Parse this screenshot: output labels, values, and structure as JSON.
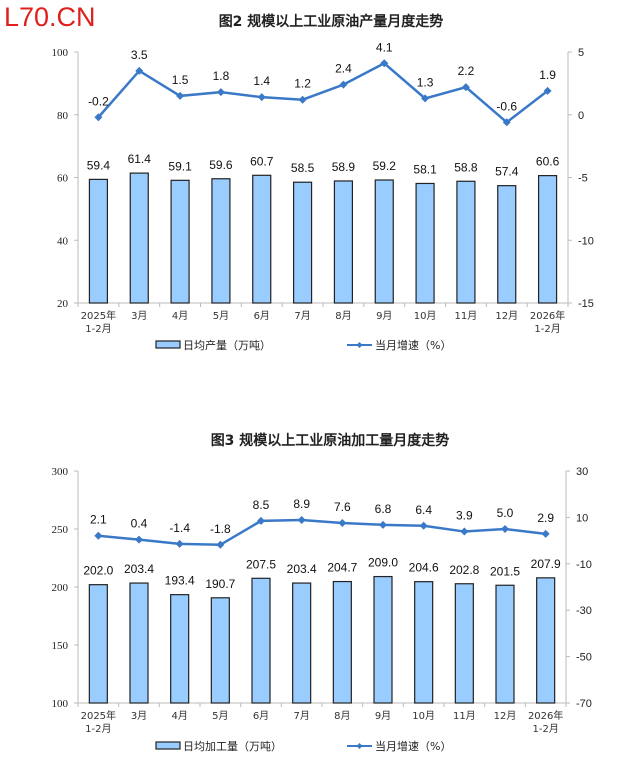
{
  "watermark": "L70.CN",
  "colors": {
    "bar": "#99ccff",
    "bar_border": "#222222",
    "line": "#3a78c8",
    "axis": "#bbbbbb"
  },
  "chart_data": [
    {
      "type": "bar+line",
      "title": "图2  规模以上工业原油产量月度走势",
      "categories": [
        "2025年\n1-2月",
        "3月",
        "4月",
        "5月",
        "6月",
        "7月",
        "8月",
        "9月",
        "10月",
        "11月",
        "12月",
        "2026年\n1-2月"
      ],
      "series": [
        {
          "name": "日均产量（万吨）",
          "type": "bar",
          "axis": "left",
          "values": [
            59.4,
            61.4,
            59.1,
            59.6,
            60.7,
            58.5,
            58.9,
            59.2,
            58.1,
            58.8,
            57.4,
            60.6
          ]
        },
        {
          "name": "当月增速（%）",
          "type": "line",
          "axis": "right",
          "values": [
            -0.2,
            3.5,
            1.5,
            1.8,
            1.4,
            1.2,
            2.4,
            4.1,
            1.3,
            2.2,
            -0.6,
            1.9
          ]
        }
      ],
      "left_ylim": [
        20,
        100
      ],
      "left_ticks": [
        20,
        40,
        60,
        80,
        100
      ],
      "right_ylim": [
        -15,
        5
      ],
      "right_ticks": [
        -15,
        -10,
        -5,
        0,
        5
      ],
      "legend": "bottom"
    },
    {
      "type": "bar+line",
      "title": "图3  规模以上工业原油加工量月度走势",
      "categories": [
        "2025年\n1-2月",
        "3月",
        "4月",
        "5月",
        "6月",
        "7月",
        "8月",
        "9月",
        "10月",
        "11月",
        "12月",
        "2026年\n1-2月"
      ],
      "series": [
        {
          "name": "日均加工量（万吨）",
          "type": "bar",
          "axis": "left",
          "values": [
            202.0,
            203.4,
            193.4,
            190.7,
            207.5,
            203.4,
            204.7,
            209.0,
            204.6,
            202.8,
            201.5,
            207.9
          ]
        },
        {
          "name": "当月增速（%）",
          "type": "line",
          "axis": "right",
          "values": [
            2.1,
            0.4,
            -1.4,
            -1.8,
            8.5,
            8.9,
            7.6,
            6.8,
            6.4,
            3.9,
            5.0,
            2.9
          ]
        }
      ],
      "left_ylim": [
        100,
        300
      ],
      "left_ticks": [
        100,
        150,
        200,
        250,
        300
      ],
      "right_ylim": [
        -70,
        30
      ],
      "right_ticks": [
        -70,
        -50,
        -30,
        -10,
        10,
        30
      ],
      "legend": "bottom"
    }
  ]
}
